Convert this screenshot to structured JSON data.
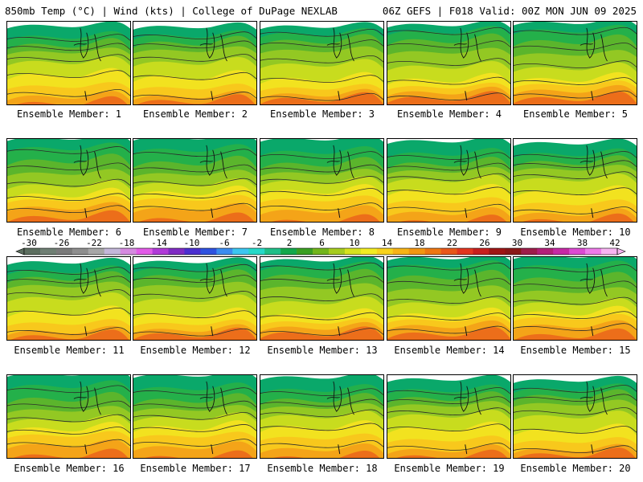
{
  "header": {
    "left": "850mb Temp (°C) | Wind (kts) | College of DuPage NEXLAB",
    "right": "06Z GEFS | F018 Valid: 00Z MON JUN 09 2025"
  },
  "panels": [
    {
      "label": "Ensemble Member: 1"
    },
    {
      "label": "Ensemble Member: 2"
    },
    {
      "label": "Ensemble Member: 3"
    },
    {
      "label": "Ensemble Member: 4"
    },
    {
      "label": "Ensemble Member: 5"
    },
    {
      "label": "Ensemble Member: 6"
    },
    {
      "label": "Ensemble Member: 7"
    },
    {
      "label": "Ensemble Member: 8"
    },
    {
      "label": "Ensemble Member: 9"
    },
    {
      "label": "Ensemble Member: 10"
    },
    {
      "label": "Ensemble Member: 11"
    },
    {
      "label": "Ensemble Member: 12"
    },
    {
      "label": "Ensemble Member: 13"
    },
    {
      "label": "Ensemble Member: 14"
    },
    {
      "label": "Ensemble Member: 15"
    },
    {
      "label": "Ensemble Member: 16"
    },
    {
      "label": "Ensemble Member: 17"
    },
    {
      "label": "Ensemble Member: 18"
    },
    {
      "label": "Ensemble Member: 19"
    },
    {
      "label": "Ensemble Member: 20"
    }
  ],
  "colorbar": {
    "labels": [
      "-30",
      "-26",
      "-22",
      "-18",
      "-14",
      "-10",
      "-6",
      "-2",
      "2",
      "6",
      "10",
      "14",
      "18",
      "22",
      "26",
      "30",
      "34",
      "38",
      "42"
    ],
    "colors": [
      "#5c6e5f",
      "#6f7f74",
      "#7a7a7a",
      "#8e8e8e",
      "#a7a7a7",
      "#c3b7d9",
      "#d58ae0",
      "#e25be8",
      "#b03ad8",
      "#7f2cc4",
      "#4b2fd0",
      "#2f52e0",
      "#3b8cf0",
      "#3cc6f0",
      "#26d9c8",
      "#1fbf88",
      "#12a84c",
      "#3a9f22",
      "#72b51c",
      "#a6cc1f",
      "#d6e21f",
      "#f2ec22",
      "#f8d21c",
      "#f7b316",
      "#f39612",
      "#ee7712",
      "#e9571a",
      "#e23520",
      "#c7201e",
      "#9f1615",
      "#8a1818",
      "#9e1d4a",
      "#b32079",
      "#c62aa5",
      "#dc4ad2",
      "#ee7ae9",
      "#f7b4f2"
    ]
  }
}
